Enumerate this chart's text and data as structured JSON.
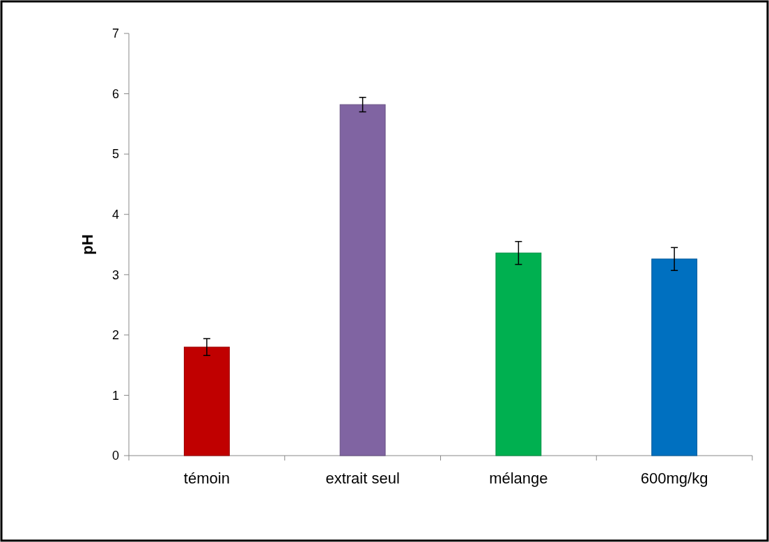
{
  "chart_data": {
    "type": "bar",
    "ylabel": "pH",
    "categories": [
      "témoin",
      "extrait seul",
      "mélange",
      "600mg/kg"
    ],
    "values": [
      1.8,
      5.82,
      3.36,
      3.26
    ],
    "colors": [
      "#c00000",
      "#8064a2",
      "#00b050",
      "#0070c0"
    ],
    "errors": [
      0.14,
      0.12,
      0.19,
      0.19
    ],
    "ylim": [
      0,
      7
    ],
    "yticks": [
      0,
      1,
      2,
      3,
      4,
      5,
      6,
      7
    ],
    "grid": false
  }
}
